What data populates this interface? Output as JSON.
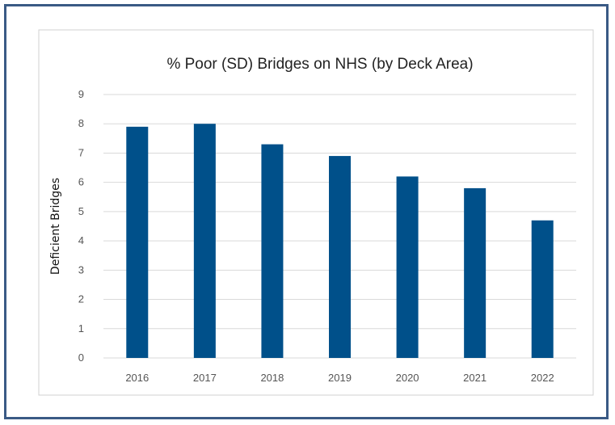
{
  "chart_data": {
    "type": "bar",
    "title": "% Poor (SD) Bridges on NHS (by Deck Area)",
    "ylabel": "Deficient Bridges",
    "xlabel": "",
    "categories": [
      "2016",
      "2017",
      "2018",
      "2019",
      "2020",
      "2021",
      "2022"
    ],
    "values": [
      7.9,
      8.0,
      7.3,
      6.9,
      6.2,
      5.8,
      4.7
    ],
    "ylim": [
      0,
      9
    ],
    "yticks": [
      "0",
      "1",
      "2",
      "3",
      "4",
      "5",
      "6",
      "7",
      "8",
      "9"
    ],
    "grid": true,
    "bar_color": "#00508a",
    "grid_color": "#d9d9d9"
  }
}
